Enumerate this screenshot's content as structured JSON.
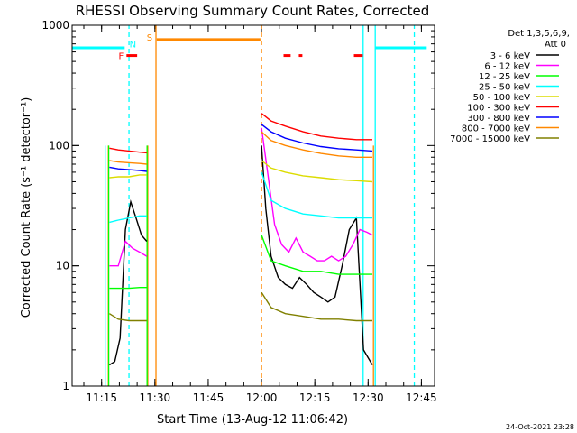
{
  "chart_data": {
    "type": "line",
    "title": "RHESSI Observing Summary Count Rates, Corrected",
    "xlabel": "Start Time (13-Aug-12 11:06:42)",
    "ylabel": "Corrected Count Rate (s⁻¹ detector⁻¹)",
    "x_unit": "minutes after 11:06:42",
    "xlim": [
      0,
      102
    ],
    "ylim": [
      1,
      1000
    ],
    "yscale": "log",
    "x_ticks": [
      {
        "value": 8.3,
        "label": "11:15"
      },
      {
        "value": 23.3,
        "label": "11:30"
      },
      {
        "value": 38.3,
        "label": "11:45"
      },
      {
        "value": 53.3,
        "label": "12:00"
      },
      {
        "value": 68.3,
        "label": "12:15"
      },
      {
        "value": 83.3,
        "label": "12:30"
      },
      {
        "value": 98.3,
        "label": "12:45"
      }
    ],
    "y_ticks": [
      {
        "value": 1,
        "label": "1"
      },
      {
        "value": 10,
        "label": "10"
      },
      {
        "value": 100,
        "label": "100"
      },
      {
        "value": 1000,
        "label": "1000"
      }
    ],
    "legend": {
      "position": "top-right",
      "header1": "Det 1,3,5,6,9,",
      "header2": "Att 0"
    },
    "footer_date": "24-Oct-2021 23:28",
    "series": [
      {
        "name": "3 - 6 keV",
        "color": "#000000",
        "segments": [
          {
            "x": [
              10.5,
              12,
              13.5,
              15,
              16.5,
              18,
              19.5,
              21
            ],
            "y": [
              1.5,
              1.6,
              2.5,
              20,
              34,
              25,
              18,
              16
            ]
          },
          {
            "x": [
              53.3,
              54.5,
              56,
              58,
              60,
              62,
              64,
              66,
              68,
              70,
              72,
              74,
              76,
              78,
              80,
              82,
              84.5
            ],
            "y": [
              100,
              30,
              12,
              8,
              7,
              6.5,
              8,
              7,
              6,
              5.5,
              5,
              5.5,
              10,
              20,
              25,
              2,
              1.5
            ]
          }
        ]
      },
      {
        "name": "6 - 12 keV",
        "color": "#ff00ff",
        "segments": [
          {
            "x": [
              10.5,
              13,
              15,
              17,
              19,
              21
            ],
            "y": [
              10,
              10,
              16,
              14,
              13,
              12
            ]
          },
          {
            "x": [
              53.3,
              55,
              57,
              59,
              61,
              63,
              65,
              67,
              69,
              71,
              73,
              75,
              77,
              79,
              81,
              83,
              84.5
            ],
            "y": [
              140,
              60,
              22,
              15,
              13,
              17,
              13,
              12,
              11,
              11,
              12,
              11,
              12,
              15,
              20,
              19,
              18
            ]
          }
        ]
      },
      {
        "name": "12 - 25 keV",
        "color": "#00ff00",
        "segments": [
          {
            "x": [
              10.5,
              13,
              16,
              19,
              21
            ],
            "y": [
              6.5,
              6.5,
              6.5,
              6.6,
              6.6
            ]
          },
          {
            "x": [
              53.3,
              56,
              60,
              65,
              70,
              75,
              80,
              84.5
            ],
            "y": [
              18,
              11,
              10,
              9,
              9,
              8.5,
              8.5,
              8.5
            ]
          }
        ]
      },
      {
        "name": "25 - 50 keV",
        "color": "#00ffff",
        "segments": [
          {
            "x": [
              10.5,
              13,
              16,
              19,
              21
            ],
            "y": [
              23,
              24,
              25,
              26,
              26
            ]
          },
          {
            "x": [
              53.3,
              56,
              60,
              65,
              70,
              75,
              80,
              84.5
            ],
            "y": [
              60,
              35,
              30,
              27,
              26,
              25,
              25,
              25
            ]
          }
        ]
      },
      {
        "name": "50 - 100 keV",
        "color": "#dcdc00",
        "segments": [
          {
            "x": [
              10.5,
              13,
              16,
              19,
              21
            ],
            "y": [
              54,
              55,
              55,
              57,
              57
            ]
          },
          {
            "x": [
              53.3,
              56,
              60,
              65,
              70,
              75,
              80,
              84.5
            ],
            "y": [
              75,
              65,
              60,
              56,
              54,
              52,
              51,
              50
            ]
          }
        ]
      },
      {
        "name": "100 - 300 keV",
        "color": "#ff0000",
        "segments": [
          {
            "x": [
              10.5,
              13,
              16,
              19,
              21
            ],
            "y": [
              95,
              92,
              90,
              88,
              87
            ]
          },
          {
            "x": [
              53.3,
              56,
              60,
              65,
              70,
              75,
              80,
              84.5
            ],
            "y": [
              185,
              160,
              145,
              130,
              120,
              115,
              112,
              112
            ]
          }
        ]
      },
      {
        "name": "300 - 800 keV",
        "color": "#0000ff",
        "segments": [
          {
            "x": [
              10.5,
              13,
              16,
              19,
              21
            ],
            "y": [
              66,
              64,
              63,
              62,
              61
            ]
          },
          {
            "x": [
              53.3,
              56,
              60,
              65,
              70,
              75,
              80,
              84.5
            ],
            "y": [
              150,
              130,
              115,
              105,
              98,
              94,
              92,
              90
            ]
          }
        ]
      },
      {
        "name": "800 - 7000 keV",
        "color": "#ff8800",
        "segments": [
          {
            "x": [
              10.5,
              13,
              16,
              19,
              21
            ],
            "y": [
              75,
              73,
              72,
              71,
              70
            ]
          },
          {
            "x": [
              53.3,
              56,
              60,
              65,
              70,
              75,
              80,
              84.5
            ],
            "y": [
              130,
              110,
              100,
              92,
              86,
              82,
              80,
              80
            ]
          }
        ]
      },
      {
        "name": "7000 - 15000 keV",
        "color": "#808000",
        "segments": [
          {
            "x": [
              10.5,
              13,
              16,
              19,
              21
            ],
            "y": [
              4,
              3.6,
              3.5,
              3.5,
              3.5
            ]
          },
          {
            "x": [
              53.3,
              56,
              60,
              65,
              70,
              75,
              80,
              84.5
            ],
            "y": [
              6,
              4.5,
              4,
              3.8,
              3.6,
              3.6,
              3.5,
              3.5
            ]
          }
        ]
      }
    ],
    "flag_lines": [
      {
        "type": "vline",
        "x": 10.2,
        "ymin": 1,
        "ymax": 100,
        "color": "#ff8800",
        "style": "solid"
      },
      {
        "type": "vline",
        "x": 21.3,
        "ymin": 1,
        "ymax": 100,
        "color": "#ff8800",
        "style": "solid"
      },
      {
        "type": "vline",
        "x": 84.8,
        "ymin": 1,
        "ymax": 100,
        "color": "#ff8800",
        "style": "solid"
      },
      {
        "type": "vline",
        "x": 10.3,
        "ymin": 1,
        "ymax": 100,
        "color": "#00ff00",
        "style": "solid"
      },
      {
        "type": "vline",
        "x": 21.1,
        "ymin": 1,
        "ymax": 100,
        "color": "#00ff00",
        "style": "solid"
      },
      {
        "type": "vline",
        "x": 23.6,
        "ymin": 1,
        "ymax": 1000,
        "color": "#ff8800",
        "style": "solid"
      },
      {
        "type": "vline",
        "x": 53.3,
        "ymin": 1,
        "ymax": 1000,
        "color": "#ff8800",
        "style": "dashed"
      },
      {
        "type": "vline",
        "x": 16.0,
        "ymin": 1,
        "ymax": 1000,
        "color": "#00ffff",
        "style": "dashed"
      },
      {
        "type": "vline",
        "x": 81.9,
        "ymin": 1,
        "ymax": 1000,
        "color": "#00ffff",
        "style": "solid"
      },
      {
        "type": "vline",
        "x": 85.3,
        "ymin": 1,
        "ymax": 1000,
        "color": "#00ffff",
        "style": "solid"
      },
      {
        "type": "vline",
        "x": 96.3,
        "ymin": 1,
        "ymax": 1000,
        "color": "#00ffff",
        "style": "dashed"
      },
      {
        "type": "vline",
        "x": 9.3,
        "ymin": 1,
        "ymax": 100,
        "color": "#00ffff",
        "style": "solid"
      },
      {
        "type": "hline",
        "x1": 0,
        "x2": 14.8,
        "y": 650,
        "color": "#00ffff"
      },
      {
        "type": "hline",
        "x1": 85.3,
        "x2": 99.8,
        "y": 650,
        "color": "#00ffff"
      },
      {
        "type": "hline",
        "x1": 23.8,
        "x2": 53.0,
        "y": 760,
        "color": "#ff8800"
      },
      {
        "type": "hline",
        "x1": 15.3,
        "x2": 18.3,
        "y": 560,
        "color": "#ff0000"
      },
      {
        "type": "hline",
        "x1": 59.5,
        "x2": 61.5,
        "y": 560,
        "color": "#ff0000"
      },
      {
        "type": "hline",
        "x1": 63.8,
        "x2": 64.8,
        "y": 560,
        "color": "#ff0000"
      },
      {
        "type": "hline",
        "x1": 79.3,
        "x2": 81.8,
        "y": 560,
        "color": "#ff0000"
      }
    ],
    "flag_labels": [
      {
        "text": "F",
        "x": 13.8,
        "y": 560,
        "color": "#ff0000"
      },
      {
        "text": "N",
        "x": 17.1,
        "y": 700,
        "color": "#00ffff"
      },
      {
        "text": "S",
        "x": 21.8,
        "y": 800,
        "color": "#ff8800"
      }
    ]
  }
}
